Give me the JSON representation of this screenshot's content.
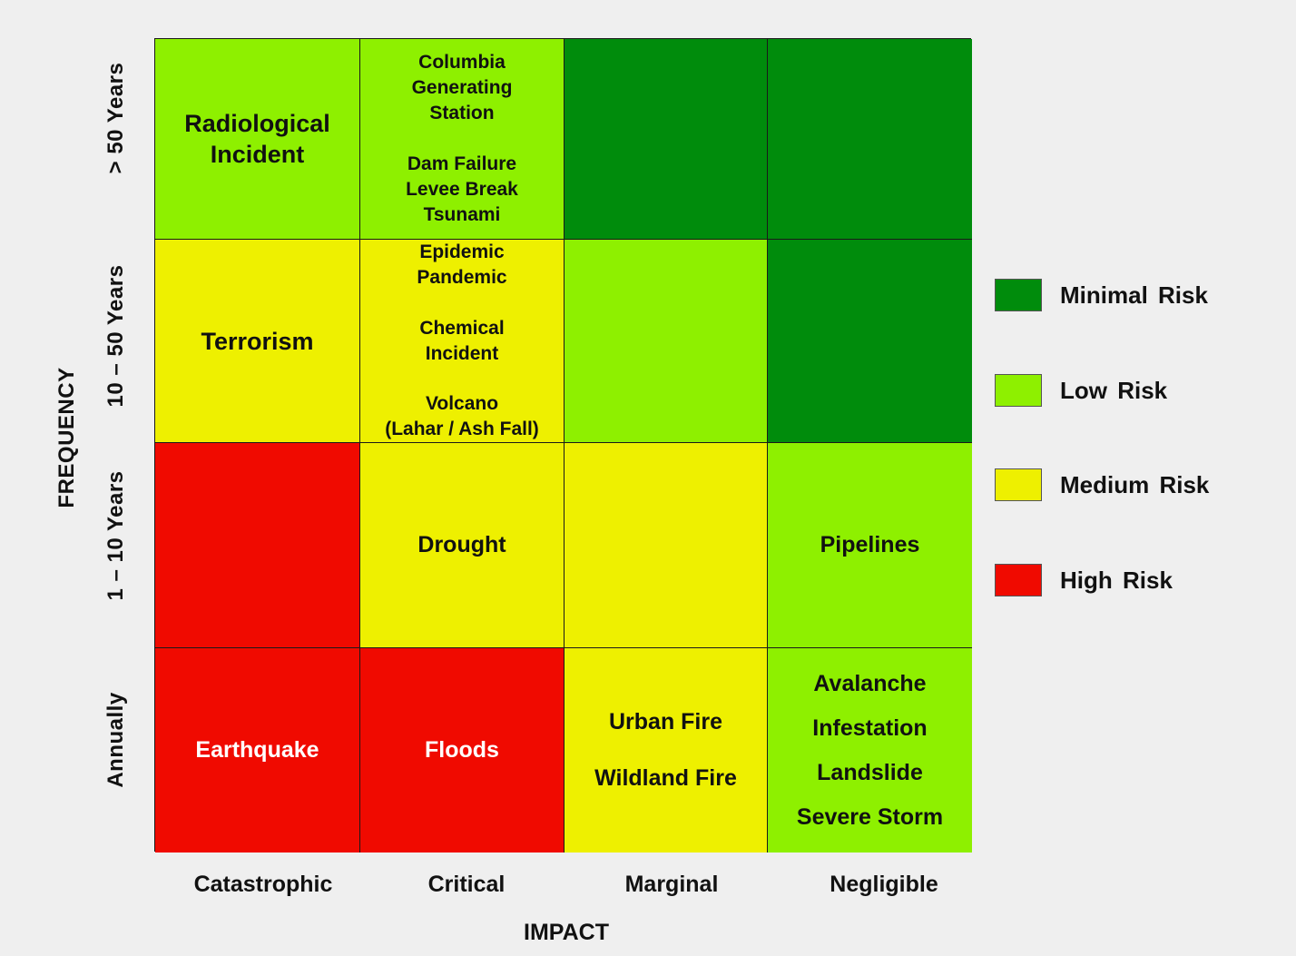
{
  "colors": {
    "minimal": "#008c0c",
    "low": "#8ef000",
    "medium": "#eef000",
    "high": "#f00a00"
  },
  "axes": {
    "y_title": "FREQUENCY",
    "x_title": "IMPACT",
    "y_levels": [
      "> 50 Years",
      "10 – 50 Years",
      "1 – 10 Years",
      "Annually"
    ],
    "x_levels": [
      "Catastrophic",
      "Critical",
      "Marginal",
      "Negligible"
    ]
  },
  "cells": {
    "r0c0": [
      "Radiological",
      "Incident"
    ],
    "r0c1a": [
      "Columbia",
      "Generating",
      "Station"
    ],
    "r0c1b": [
      "Dam Failure",
      "Levee Break",
      "Tsunami"
    ],
    "r1c0": [
      "Terrorism"
    ],
    "r1c1a": [
      "Epidemic",
      "Pandemic"
    ],
    "r1c1b": [
      "Chemical",
      "Incident"
    ],
    "r1c1c": [
      "Volcano",
      "(Lahar / Ash Fall)"
    ],
    "r2c1": [
      "Drought"
    ],
    "r2c3": [
      "Pipelines"
    ],
    "r3c0": [
      "Earthquake"
    ],
    "r3c1": [
      "Floods"
    ],
    "r3c2": [
      "Urban Fire",
      "Wildland Fire"
    ],
    "r3c3": [
      "Avalanche",
      "Infestation",
      "Landslide",
      "Severe Storm"
    ]
  },
  "legend": [
    {
      "label": "Minimal Risk",
      "color": "#008c0c"
    },
    {
      "label": "Low Risk",
      "color": "#8ef000"
    },
    {
      "label": "Medium Risk",
      "color": "#eef000"
    },
    {
      "label": "High Risk",
      "color": "#f00a00"
    }
  ]
}
